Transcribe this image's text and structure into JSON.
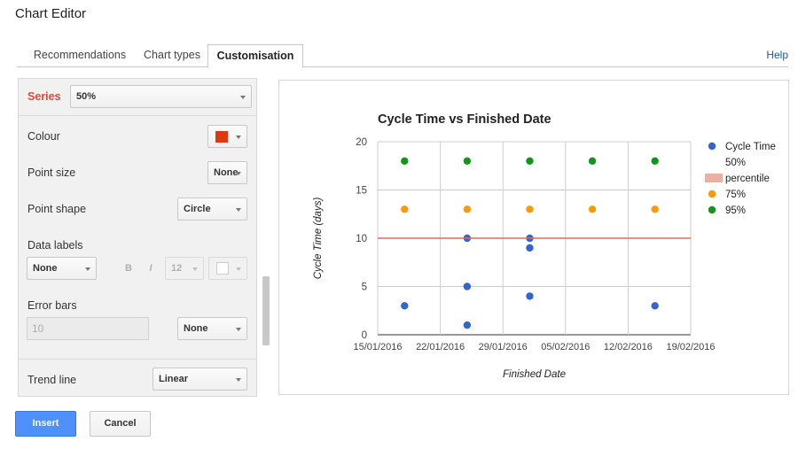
{
  "app": {
    "title": "Chart Editor"
  },
  "tabs": [
    {
      "label": "Recommendations"
    },
    {
      "label": "Chart types"
    },
    {
      "label": "Customisation"
    }
  ],
  "help_label": "Help",
  "panel": {
    "series": {
      "label": "Series",
      "value": "50%"
    },
    "colour": {
      "label": "Colour",
      "swatch": "#dc3912"
    },
    "point_size": {
      "label": "Point size",
      "value": "None"
    },
    "point_shape": {
      "label": "Point shape",
      "value": "Circle"
    },
    "data_labels": {
      "label": "Data labels",
      "value": "None",
      "bold": "B",
      "italic": "I",
      "font_size": "12"
    },
    "error_bars": {
      "label": "Error bars",
      "input_value": "10",
      "value": "None"
    },
    "trend_line": {
      "label": "Trend line",
      "value": "Linear"
    }
  },
  "buttons": {
    "insert": "Insert",
    "cancel": "Cancel"
  },
  "colors": {
    "blue": "#3366cc",
    "orange": "#ff9900",
    "green": "#109618",
    "red_line": "#e06b5a",
    "accent": "#4d90fe"
  },
  "chart_data": {
    "type": "scatter",
    "title": "Cycle Time vs Finished Date",
    "xlabel": "Finished Date",
    "ylabel": "Cycle Time (days)",
    "xlim": [
      "15/01/2016",
      "19/02/2016"
    ],
    "ylim": [
      0,
      20
    ],
    "x_ticks": [
      "15/01/2016",
      "22/01/2016",
      "29/01/2016",
      "05/02/2016",
      "12/02/2016",
      "19/02/2016"
    ],
    "y_ticks": [
      0,
      5,
      10,
      15,
      20
    ],
    "grid": true,
    "legend_position": "right",
    "legend": [
      "Cycle Time",
      "50%",
      "percentile",
      "75%",
      "95%"
    ],
    "series": [
      {
        "name": "Cycle Time",
        "color": "#3366cc",
        "points": [
          {
            "x": "18/01/2016",
            "y": 3
          },
          {
            "x": "25/01/2016",
            "y": 1
          },
          {
            "x": "25/01/2016",
            "y": 5
          },
          {
            "x": "25/01/2016",
            "y": 10
          },
          {
            "x": "01/02/2016",
            "y": 4
          },
          {
            "x": "01/02/2016",
            "y": 9
          },
          {
            "x": "01/02/2016",
            "y": 10
          },
          {
            "x": "15/02/2016",
            "y": 3
          }
        ]
      },
      {
        "name": "50% percentile",
        "color": "#e06b5a",
        "type": "line",
        "y": 10
      },
      {
        "name": "75%",
        "color": "#ff9900",
        "points": [
          {
            "x": "18/01/2016",
            "y": 13
          },
          {
            "x": "25/01/2016",
            "y": 13
          },
          {
            "x": "01/02/2016",
            "y": 13
          },
          {
            "x": "08/02/2016",
            "y": 13
          },
          {
            "x": "15/02/2016",
            "y": 13
          }
        ]
      },
      {
        "name": "95%",
        "color": "#109618",
        "points": [
          {
            "x": "18/01/2016",
            "y": 18
          },
          {
            "x": "25/01/2016",
            "y": 18
          },
          {
            "x": "01/02/2016",
            "y": 18
          },
          {
            "x": "08/02/2016",
            "y": 18
          },
          {
            "x": "15/02/2016",
            "y": 18
          }
        ]
      }
    ]
  }
}
